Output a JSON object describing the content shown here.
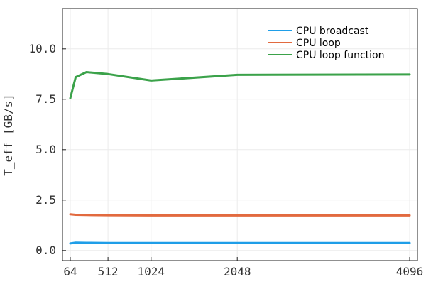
{
  "chart_data": {
    "type": "line",
    "title": "",
    "xlabel": "",
    "ylabel": "T_eff [GB/s]",
    "xlim": [
      64,
      4096
    ],
    "ylim": [
      -0.5,
      12.0
    ],
    "xticks": [
      64,
      512,
      1024,
      2048,
      4096
    ],
    "yticks": [
      0.0,
      2.5,
      5.0,
      7.5,
      10.0
    ],
    "xtick_labels": [
      "64",
      "512",
      "1024",
      "2048",
      "4096"
    ],
    "ytick_labels": [
      "0.0",
      "2.5",
      "5.0",
      "7.5",
      "10.0"
    ],
    "grid": true,
    "legend_position": "top-right",
    "series": [
      {
        "name": "CPU broadcast",
        "color": "#1f9ee8",
        "x": [
          64,
          128,
          256,
          512,
          1024,
          2048,
          4096
        ],
        "y": [
          0.35,
          0.39,
          0.38,
          0.37,
          0.37,
          0.37,
          0.37
        ]
      },
      {
        "name": "CPU loop",
        "color": "#e26a3f",
        "x": [
          64,
          128,
          256,
          512,
          1024,
          2048,
          4096
        ],
        "y": [
          1.8,
          1.77,
          1.76,
          1.75,
          1.74,
          1.74,
          1.74
        ]
      },
      {
        "name": "CPU loop function",
        "color": "#3ba24a",
        "x": [
          64,
          128,
          256,
          512,
          1024,
          2048,
          4096
        ],
        "y": [
          7.55,
          8.6,
          8.85,
          8.75,
          8.43,
          8.71,
          8.73
        ]
      }
    ]
  }
}
